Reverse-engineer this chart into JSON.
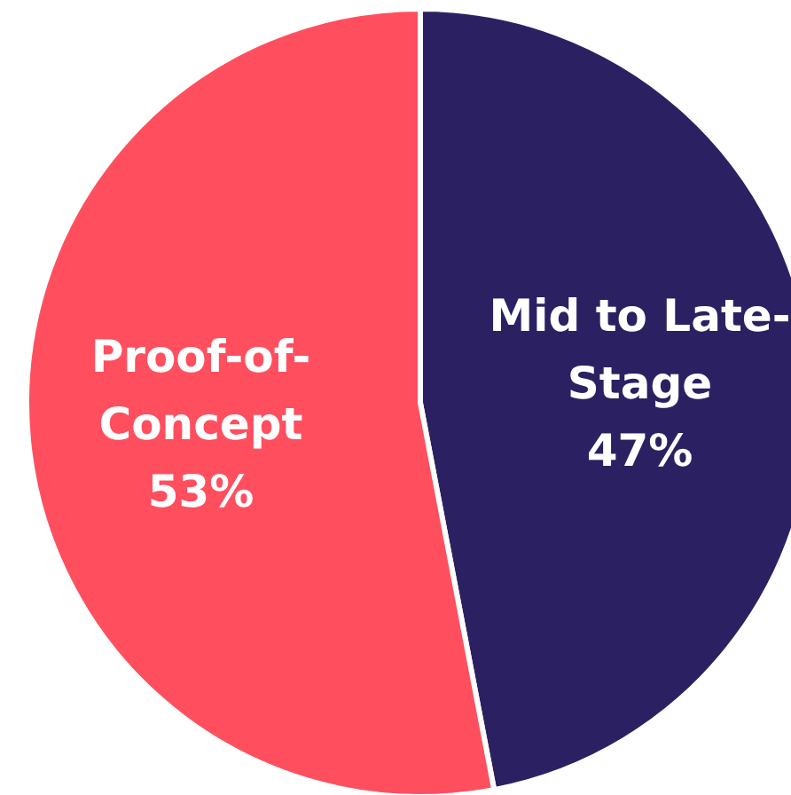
{
  "chart_data": {
    "type": "pie",
    "categories": [
      "Mid to Late-Stage",
      "Proof-of-Concept"
    ],
    "values": [
      47,
      53
    ],
    "colors": [
      "#2b2162",
      "#ff4f5e"
    ],
    "value_labels": [
      "47%",
      "53%"
    ]
  }
}
